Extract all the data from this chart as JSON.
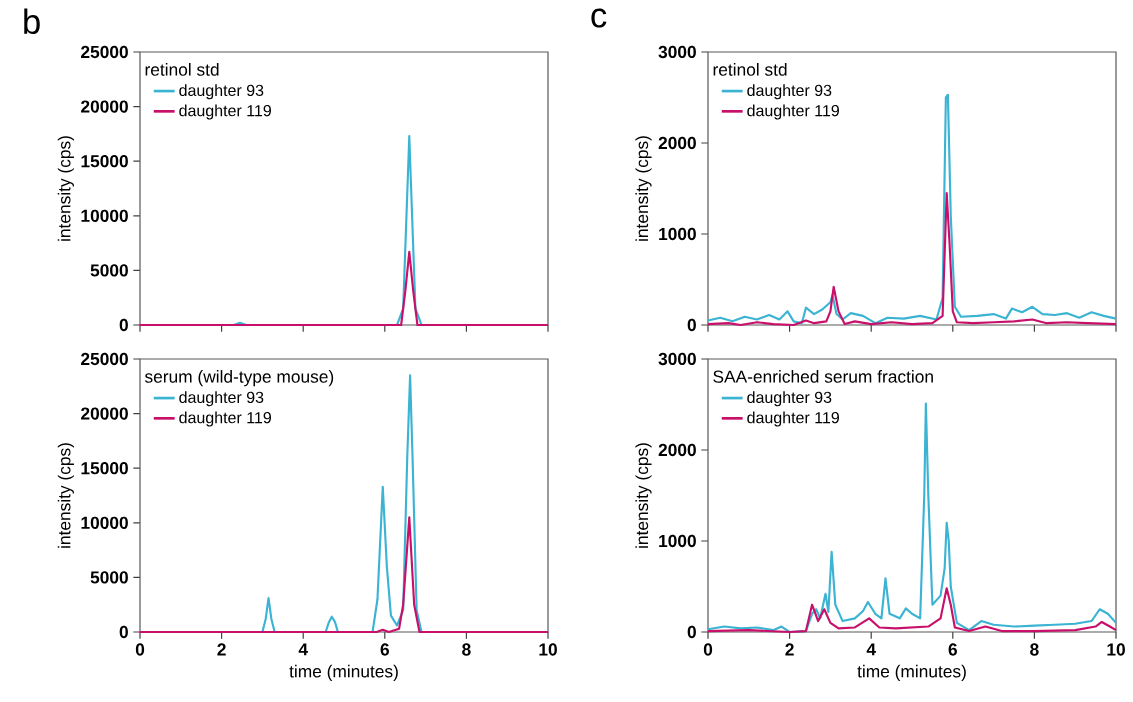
{
  "chart_data": [
    {
      "type": "line",
      "legend_title": "retinol std",
      "ylabel": "intensity (cps)",
      "annotations": [
        "b"
      ],
      "legend": "top left",
      "tick_labels": "y",
      "xlim": [
        0,
        10
      ],
      "ylim": [
        0,
        25000
      ],
      "xticks": [
        0,
        2,
        4,
        6,
        8,
        10
      ],
      "yticks": [
        0,
        5000,
        10000,
        15000,
        20000,
        25000
      ],
      "series": [
        {
          "name": "daughter 93",
          "color": "#3bb3d3",
          "x": [
            0,
            2.3,
            2.45,
            2.6,
            6.3,
            6.45,
            6.55,
            6.6,
            6.65,
            6.75,
            6.9,
            10
          ],
          "values": [
            0,
            0,
            200,
            0,
            0,
            1500,
            12000,
            17300,
            12000,
            1500,
            0,
            0
          ]
        },
        {
          "name": "daughter 119",
          "color": "#c8106a",
          "x": [
            0,
            6.4,
            6.5,
            6.6,
            6.7,
            6.8,
            10
          ],
          "values": [
            0,
            0,
            3000,
            6700,
            3000,
            0,
            0
          ]
        }
      ]
    },
    {
      "type": "line",
      "legend_title": "serum (wild-type mouse)",
      "xlabel": "time (minutes)",
      "ylabel": "intensity (cps)",
      "legend": "top left",
      "xlim": [
        0,
        10
      ],
      "ylim": [
        0,
        25000
      ],
      "xticks": [
        0,
        2,
        4,
        6,
        8,
        10
      ],
      "yticks": [
        0,
        5000,
        10000,
        15000,
        20000,
        25000
      ],
      "series": [
        {
          "name": "daughter 93",
          "color": "#3bb3d3",
          "x": [
            0,
            3.0,
            3.08,
            3.15,
            3.22,
            3.3,
            4.55,
            4.63,
            4.7,
            4.78,
            4.85,
            5.7,
            5.82,
            5.95,
            6.05,
            6.15,
            6.3,
            6.45,
            6.55,
            6.62,
            6.68,
            6.78,
            6.9,
            10
          ],
          "values": [
            0,
            0,
            1200,
            3100,
            1200,
            0,
            0,
            900,
            1400,
            900,
            0,
            0,
            3000,
            13300,
            6000,
            1500,
            600,
            2000,
            16000,
            23500,
            16000,
            2000,
            0,
            0
          ]
        },
        {
          "name": "daughter 119",
          "color": "#c8106a",
          "x": [
            0,
            5.8,
            5.95,
            6.1,
            6.35,
            6.45,
            6.6,
            6.72,
            6.85,
            10
          ],
          "values": [
            0,
            0,
            200,
            0,
            300,
            2500,
            10500,
            2500,
            0,
            0
          ]
        }
      ]
    },
    {
      "type": "line",
      "legend_title": "retinol std",
      "ylabel": "intensity (cps)",
      "annotations": [
        "c"
      ],
      "legend": "top left",
      "tick_labels": "y",
      "xlim": [
        0,
        10
      ],
      "ylim": [
        0,
        3000
      ],
      "xticks": [
        0,
        2,
        4,
        6,
        8,
        10
      ],
      "yticks": [
        0,
        1000,
        2000,
        3000
      ],
      "series": [
        {
          "name": "daughter 93",
          "color": "#3bb3d3",
          "x": [
            0,
            0.3,
            0.6,
            0.9,
            1.2,
            1.5,
            1.75,
            1.95,
            2.1,
            2.3,
            2.4,
            2.6,
            2.8,
            3.0,
            3.05,
            3.15,
            3.3,
            3.5,
            3.8,
            4.1,
            4.4,
            4.8,
            5.2,
            5.6,
            5.75,
            5.83,
            5.88,
            5.95,
            6.05,
            6.2,
            6.6,
            7.0,
            7.3,
            7.45,
            7.7,
            7.95,
            8.2,
            8.5,
            8.8,
            9.1,
            9.4,
            9.7,
            10
          ],
          "values": [
            50,
            80,
            40,
            90,
            60,
            110,
            60,
            150,
            40,
            20,
            190,
            120,
            170,
            250,
            330,
            120,
            60,
            130,
            100,
            20,
            80,
            70,
            100,
            60,
            300,
            2500,
            2530,
            1200,
            200,
            90,
            100,
            120,
            70,
            180,
            140,
            200,
            120,
            110,
            130,
            80,
            140,
            100,
            70
          ]
        },
        {
          "name": "daughter 119",
          "color": "#c8106a",
          "x": [
            0,
            0.5,
            0.8,
            1.2,
            1.6,
            2.1,
            2.4,
            2.6,
            2.9,
            3.0,
            3.08,
            3.2,
            3.35,
            3.6,
            4.0,
            4.5,
            5.0,
            5.5,
            5.75,
            5.85,
            5.92,
            6.0,
            6.1,
            6.5,
            7.0,
            7.5,
            7.95,
            8.3,
            8.8,
            9.3,
            10
          ],
          "values": [
            10,
            20,
            0,
            30,
            10,
            0,
            50,
            20,
            40,
            150,
            420,
            150,
            10,
            40,
            10,
            30,
            10,
            20,
            100,
            1450,
            900,
            150,
            30,
            20,
            30,
            40,
            60,
            20,
            30,
            20,
            10
          ]
        }
      ]
    },
    {
      "type": "line",
      "legend_title": "SAA-enriched serum fraction",
      "xlabel": "time (minutes)",
      "ylabel": "intensity (cps)",
      "legend": "top left",
      "xlim": [
        0,
        10
      ],
      "ylim": [
        0,
        3000
      ],
      "xticks": [
        0,
        2,
        4,
        6,
        8,
        10
      ],
      "yticks": [
        0,
        1000,
        2000,
        3000
      ],
      "series": [
        {
          "name": "daughter 93",
          "color": "#3bb3d3",
          "x": [
            0,
            0.4,
            0.8,
            1.2,
            1.6,
            1.8,
            2.0,
            2.4,
            2.55,
            2.65,
            2.75,
            2.88,
            2.95,
            3.03,
            3.12,
            3.3,
            3.6,
            3.8,
            3.92,
            4.1,
            4.25,
            4.35,
            4.45,
            4.7,
            4.85,
            5.0,
            5.2,
            5.3,
            5.34,
            5.4,
            5.5,
            5.7,
            5.8,
            5.85,
            5.9,
            5.95,
            6.1,
            6.4,
            6.7,
            7.0,
            7.5,
            8.0,
            8.5,
            9.0,
            9.4,
            9.6,
            9.8,
            10
          ],
          "values": [
            30,
            60,
            40,
            50,
            20,
            60,
            0,
            10,
            200,
            250,
            150,
            420,
            220,
            880,
            300,
            120,
            150,
            230,
            330,
            200,
            150,
            590,
            200,
            150,
            260,
            200,
            150,
            1500,
            2510,
            1500,
            300,
            400,
            700,
            1200,
            1000,
            500,
            100,
            20,
            120,
            80,
            60,
            70,
            80,
            90,
            120,
            250,
            200,
            100
          ]
        },
        {
          "name": "daughter 119",
          "color": "#c8106a",
          "x": [
            0,
            1.0,
            2.0,
            2.4,
            2.55,
            2.7,
            2.85,
            3.0,
            3.2,
            3.6,
            3.95,
            4.2,
            4.6,
            5.0,
            5.4,
            5.7,
            5.85,
            5.95,
            6.05,
            6.4,
            6.8,
            7.2,
            8.0,
            9.0,
            9.5,
            9.65,
            9.85,
            10
          ],
          "values": [
            10,
            20,
            0,
            10,
            300,
            120,
            250,
            100,
            40,
            50,
            150,
            50,
            40,
            50,
            60,
            150,
            480,
            300,
            50,
            10,
            60,
            10,
            10,
            20,
            60,
            110,
            60,
            20
          ]
        }
      ]
    }
  ]
}
